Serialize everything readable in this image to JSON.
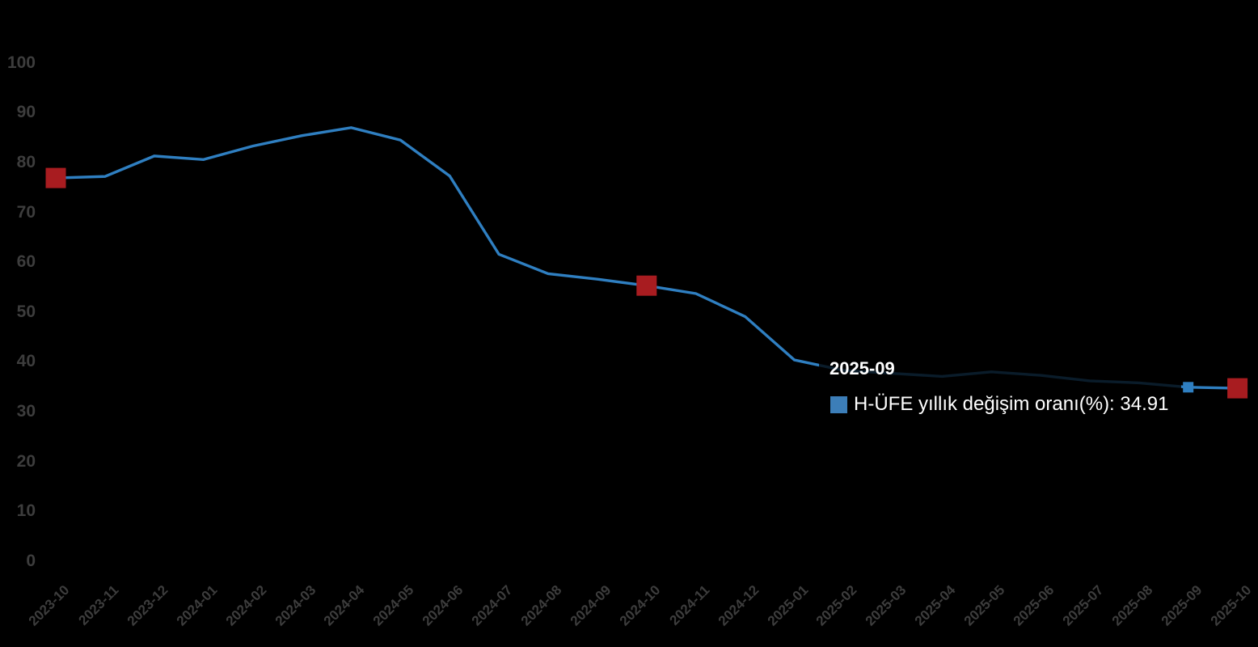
{
  "chart_data": {
    "type": "line",
    "title": "",
    "xlabel": "",
    "ylabel": "",
    "categories": [
      "2023-10",
      "2023-11",
      "2023-12",
      "2024-01",
      "2024-02",
      "2024-03",
      "2024-04",
      "2024-05",
      "2024-06",
      "2024-07",
      "2024-08",
      "2024-09",
      "2024-10",
      "2024-11",
      "2024-12",
      "2025-01",
      "2025-02",
      "2025-03",
      "2025-04",
      "2025-05",
      "2025-06",
      "2025-07",
      "2025-08",
      "2025-09",
      "2025-10"
    ],
    "series": [
      {
        "name": "H-ÜFE yıllık değişim oranı(%)",
        "values": [
          76.9,
          77.2,
          81.3,
          80.6,
          83.3,
          85.4,
          87.0,
          84.5,
          77.3,
          61.6,
          57.7,
          56.6,
          55.3,
          53.7,
          49.1,
          40.4,
          38.3,
          37.7,
          37.1,
          38.0,
          37.3,
          36.2,
          35.8,
          34.91,
          34.7
        ]
      }
    ],
    "ylim": [
      0,
      100
    ],
    "yticks": [
      0,
      10,
      20,
      30,
      40,
      50,
      60,
      70,
      80,
      90,
      100
    ],
    "grid": false,
    "legend_position": "tooltip-only",
    "red_marker_indices": [
      0,
      12,
      24
    ],
    "highlight_index": 23
  },
  "tooltip": {
    "date": "2025-09",
    "series_name": "H-ÜFE yıllık değişim oranı(%)",
    "value": "34.91",
    "text": "H-ÜFE yıllık değişim oranı(%): 34.91"
  },
  "colors": {
    "background": "#000000",
    "line": "#2f7fc1",
    "red_marker": "#a81c20",
    "highlight_marker": "#2f7fc1",
    "axis_label": "#3d3d3d",
    "tooltip_text": "#ffffff",
    "tooltip_swatch": "#3c7eb8"
  }
}
